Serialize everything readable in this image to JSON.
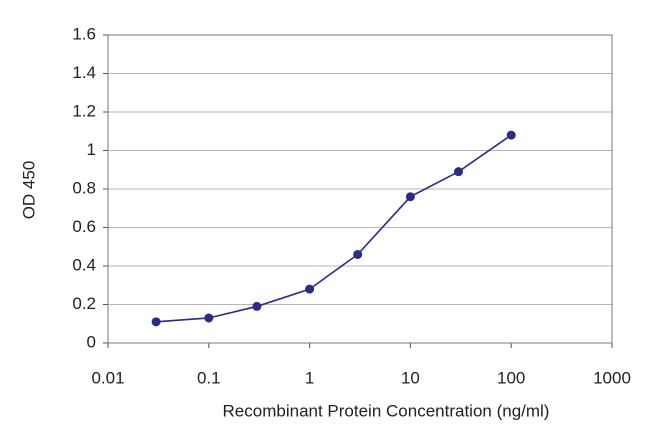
{
  "chart_data": {
    "type": "line",
    "xlabel": "Recombinant Protein Concentration (ng/ml)",
    "ylabel": "OD 450",
    "x": [
      0.03,
      0.1,
      0.3,
      1,
      3,
      10,
      30,
      100
    ],
    "series": [
      {
        "color": "#2b2b8c",
        "values": [
          0.11,
          0.13,
          0.19,
          0.28,
          0.46,
          0.76,
          0.89,
          1.08
        ]
      }
    ],
    "xscale": "log",
    "xlim": [
      0.01,
      1000
    ],
    "xticks": [
      0.01,
      0.1,
      1,
      10,
      100,
      1000
    ],
    "ylim": [
      0,
      1.6
    ],
    "yticks": [
      0,
      0.2,
      0.4,
      0.6,
      0.8,
      1,
      1.2,
      1.4,
      1.6
    ],
    "grid": true
  }
}
